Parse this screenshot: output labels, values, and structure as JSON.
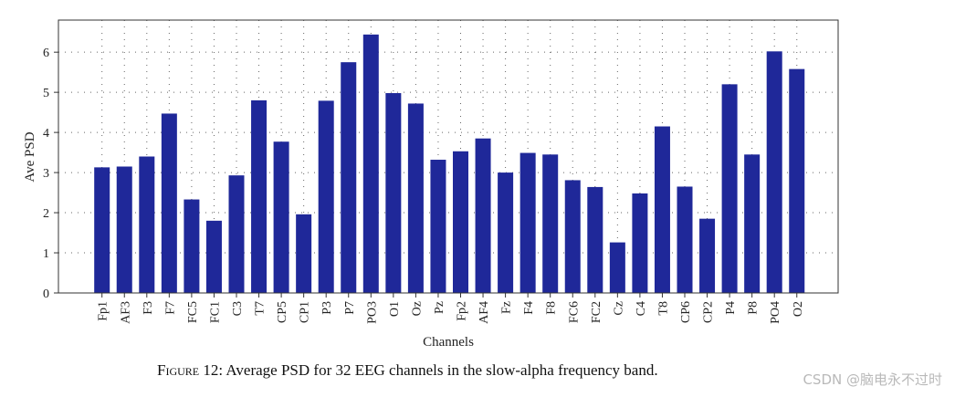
{
  "chart_data": {
    "type": "bar",
    "categories": [
      "Fp1",
      "AF3",
      "F3",
      "F7",
      "FC5",
      "FC1",
      "C3",
      "T7",
      "CP5",
      "CP1",
      "P3",
      "P7",
      "PO3",
      "O1",
      "Oz",
      "Pz",
      "Fp2",
      "AF4",
      "Fz",
      "F4",
      "F8",
      "FC6",
      "FC2",
      "Cz",
      "C4",
      "T8",
      "CP6",
      "CP2",
      "P4",
      "P8",
      "PO4",
      "O2"
    ],
    "values": [
      3.13,
      3.15,
      3.4,
      4.47,
      2.33,
      1.8,
      2.93,
      4.8,
      3.77,
      1.96,
      4.79,
      5.75,
      6.44,
      4.98,
      4.72,
      3.32,
      3.53,
      3.85,
      3.0,
      3.49,
      3.45,
      2.81,
      2.64,
      1.26,
      2.48,
      4.15,
      2.65,
      1.85,
      5.2,
      3.45,
      6.02,
      5.58
    ],
    "title": "",
    "xlabel": "Channels",
    "ylabel": "Ave PSD",
    "ylim": [
      0,
      6.8
    ],
    "yticks": [
      "0",
      "1",
      "2",
      "3",
      "4",
      "5",
      "6"
    ],
    "grid": true,
    "bar_color": "#1f2899"
  },
  "caption": {
    "figure_label": "Figure 12:",
    "text": "Average PSD for 32 EEG channels in the slow-alpha frequency band."
  },
  "watermark": "CSDN @脑电永不过时"
}
